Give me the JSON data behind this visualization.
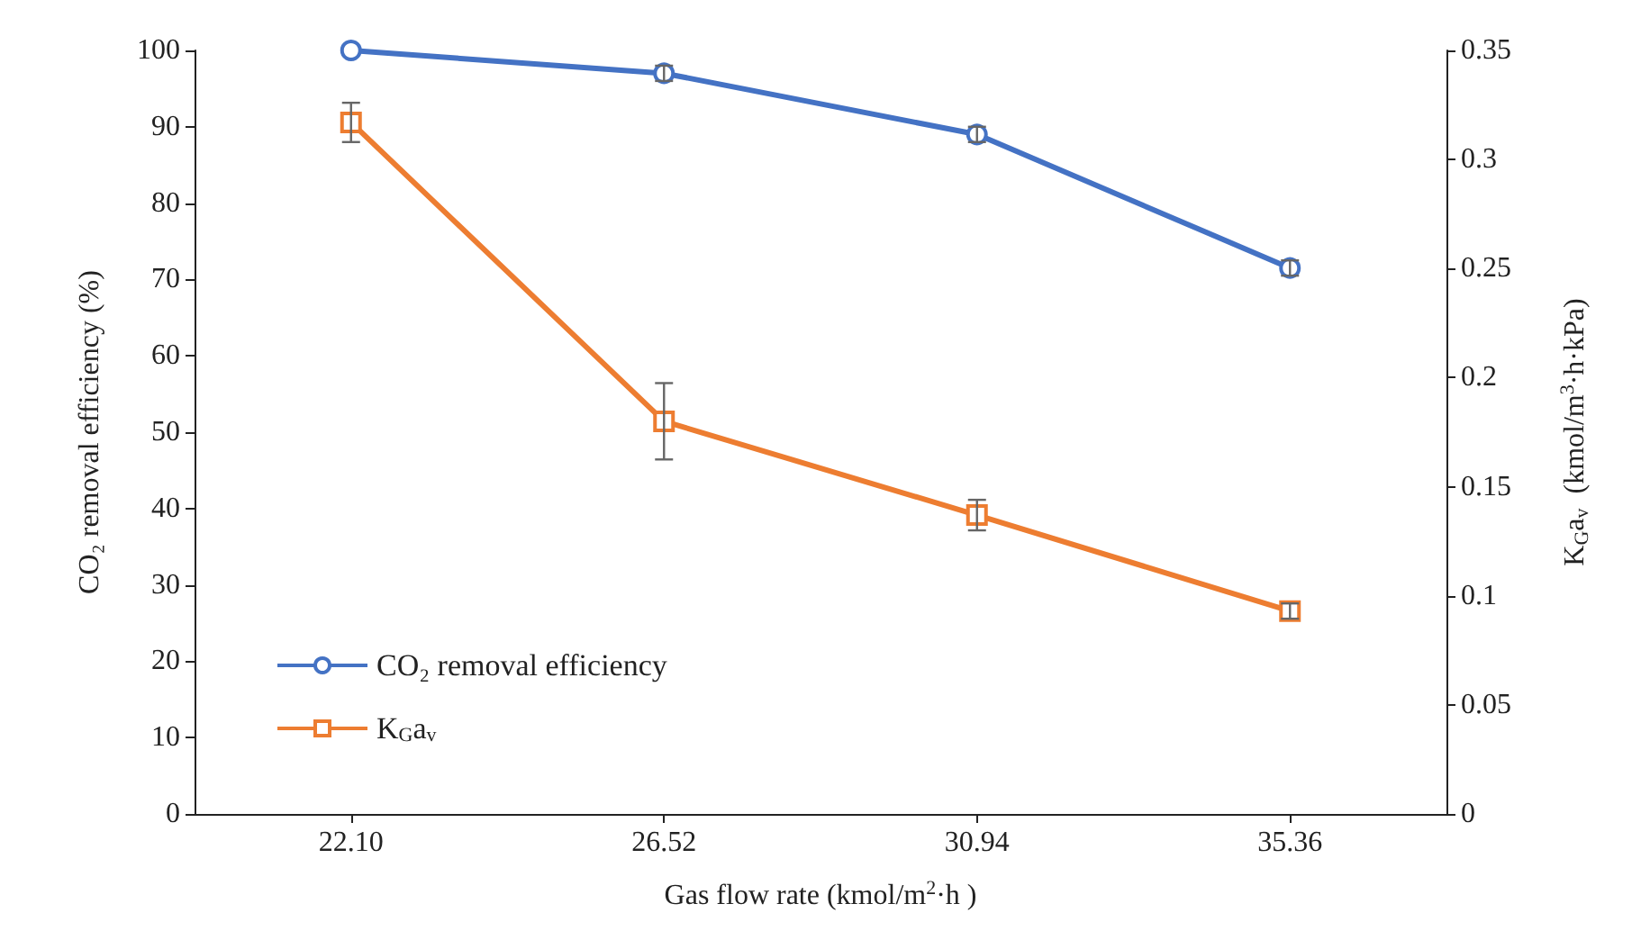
{
  "chart_data": {
    "type": "line",
    "xlabel": "Gas flow rate (kmol/m$^{2}$·h )",
    "ylabel": "CO₂ removal efficiency (%)",
    "y2label": "K$_{G}$a$_{v}$  (kmol/m$^{3}$·h·kPa)",
    "categories": [
      "22.10",
      "26.52",
      "30.94",
      "35.36"
    ],
    "series": [
      {
        "name": "CO₂ removal efficiency",
        "color": "#4472c4",
        "marker": "circle",
        "values": [
          100,
          97,
          89,
          71.5
        ],
        "errors": [
          null,
          1,
          1,
          1
        ]
      },
      {
        "name": "K$_{G}$a$_{v}$",
        "color": "#ed7d31",
        "marker": "square",
        "axis": "y2",
        "values": [
          0.317,
          0.18,
          0.137,
          0.093
        ],
        "errors": [
          0.009,
          0.0175,
          0.007,
          0.0035
        ]
      }
    ],
    "ylim": [
      0,
      100
    ],
    "yticks": [
      0,
      10,
      20,
      30,
      40,
      50,
      60,
      70,
      80,
      90,
      100
    ],
    "y2lim": [
      0,
      0.35
    ],
    "y2ticks": [
      0,
      0.05,
      0.1,
      0.15,
      0.2,
      0.25,
      0.3,
      0.35
    ],
    "grid": false,
    "legend": "bottom left"
  }
}
